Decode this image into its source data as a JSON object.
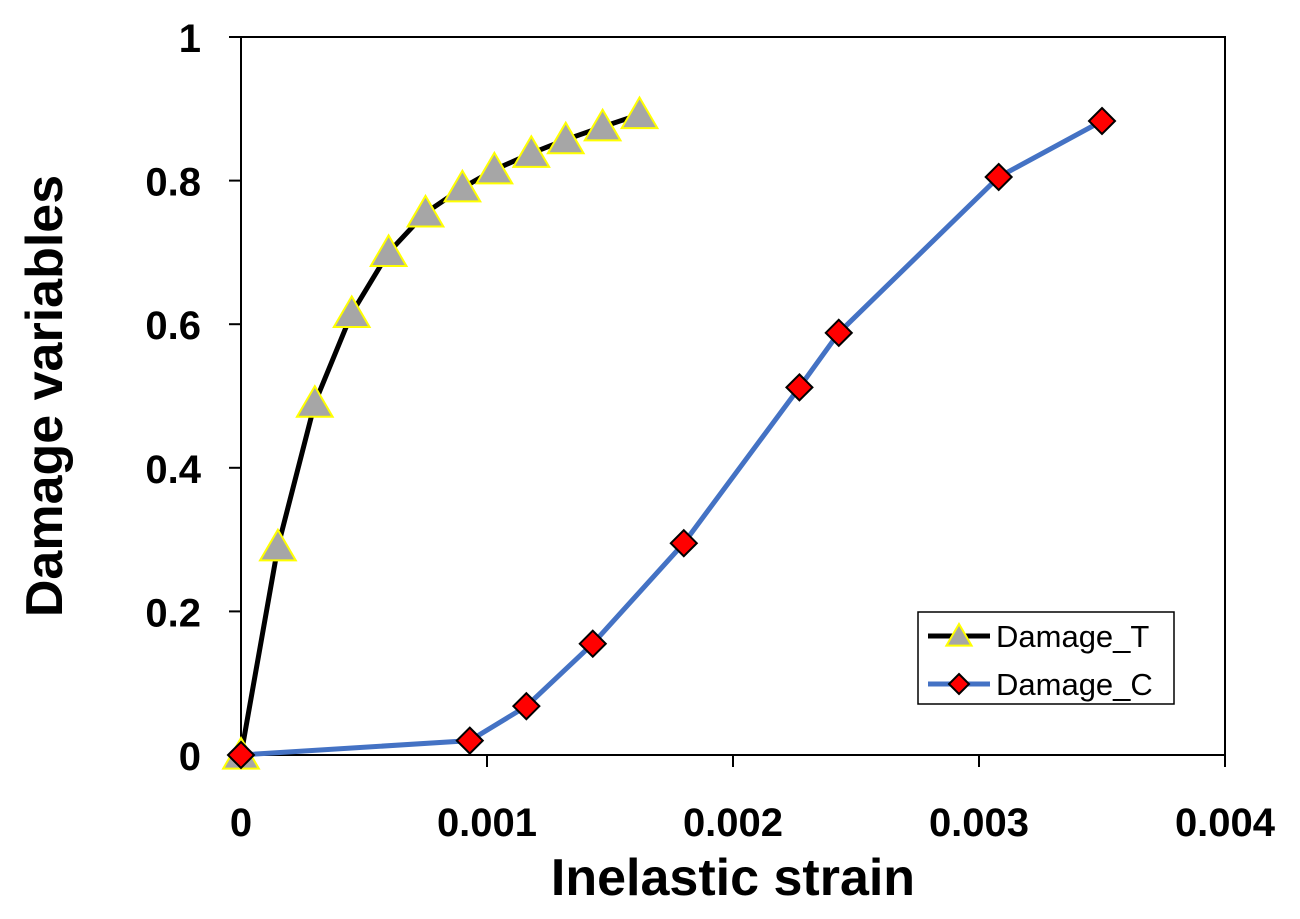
{
  "chart_data": {
    "type": "line",
    "title": "",
    "xlabel": "Inelastic strain",
    "ylabel": "Damage variables",
    "xlim": [
      0,
      0.004
    ],
    "ylim": [
      0,
      1
    ],
    "x_ticks": [
      "0",
      "0.001",
      "0.002",
      "0.003",
      "0.004"
    ],
    "y_ticks": [
      "0",
      "0.2",
      "0.4",
      "0.6",
      "0.8",
      "1"
    ],
    "x_tick_values": [
      0,
      0.001,
      0.002,
      0.003,
      0.004
    ],
    "y_tick_values": [
      0,
      0.2,
      0.4,
      0.6,
      0.8,
      1
    ],
    "grid": false,
    "legend_position": "bottom-right",
    "series": [
      {
        "name": "Damage_T",
        "line_color": "#000000",
        "marker": "triangle",
        "marker_fill": "#a6a6a6",
        "marker_edge": "#ffff00",
        "x": [
          0,
          0.00015,
          0.0003,
          0.00045,
          0.0006,
          0.00075,
          0.0009,
          0.00103,
          0.00118,
          0.00132,
          0.00147,
          0.00162
        ],
        "y": [
          0,
          0.29,
          0.49,
          0.615,
          0.7,
          0.755,
          0.79,
          0.815,
          0.838,
          0.857,
          0.875,
          0.892
        ]
      },
      {
        "name": "Damage_C",
        "line_color": "#4472c4",
        "marker": "diamond",
        "marker_fill": "#ff0000",
        "marker_edge": "#000000",
        "x": [
          0,
          0.00093,
          0.00116,
          0.00143,
          0.0018,
          0.00227,
          0.00243,
          0.00308,
          0.0035
        ],
        "y": [
          0,
          0.02,
          0.068,
          0.155,
          0.295,
          0.512,
          0.588,
          0.805,
          0.883
        ]
      }
    ]
  }
}
